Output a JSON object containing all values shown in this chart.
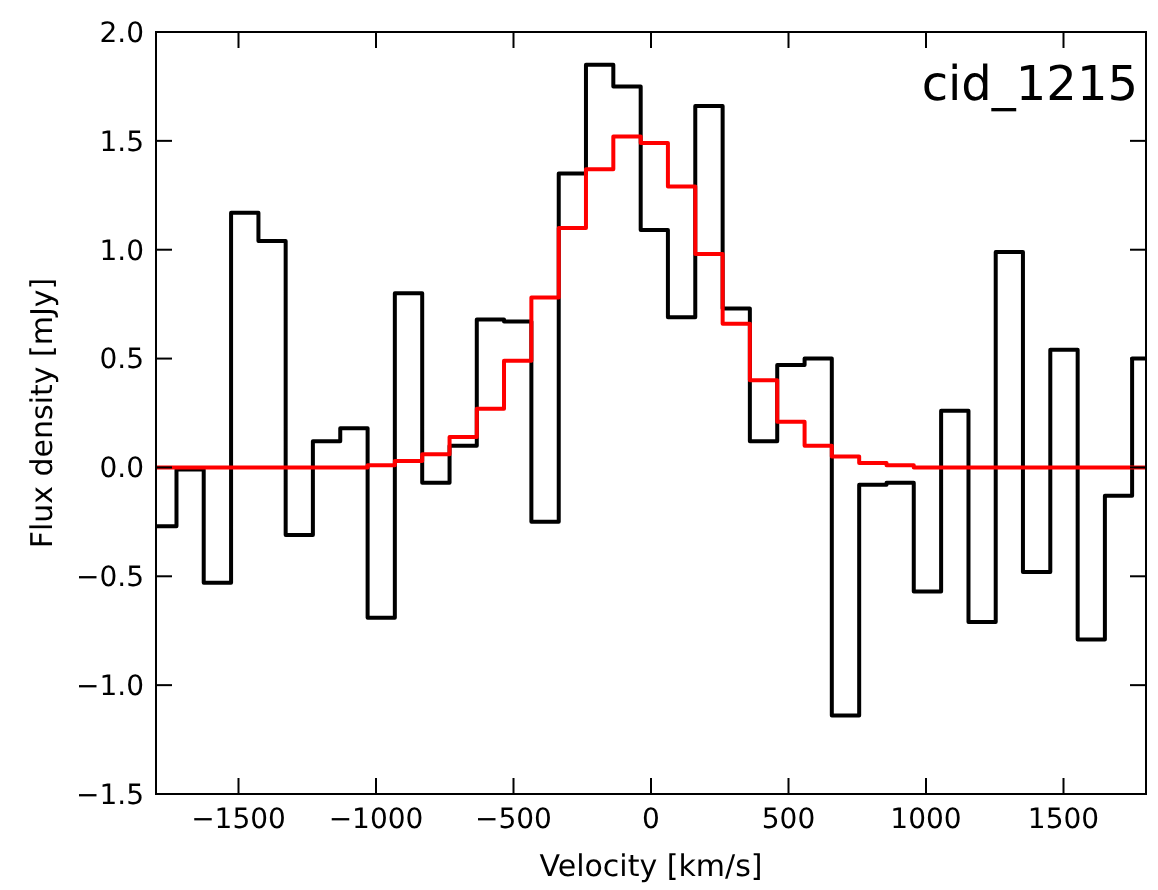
{
  "chart_data": {
    "type": "step",
    "xlabel": "Velocity [km/s]",
    "ylabel": "Flux density [mJy]",
    "annotations": [
      "cid_1215"
    ],
    "x": [
      -1775,
      -1676,
      -1577,
      -1477,
      -1378,
      -1279,
      -1180,
      -1080,
      -981,
      -882,
      -782,
      -683,
      -584,
      -485,
      -385,
      -286,
      -187,
      -87,
      12,
      111,
      211,
      310,
      409,
      509,
      608,
      707,
      807,
      906,
      1005,
      1105,
      1204,
      1303,
      1402,
      1502,
      1601,
      1700,
      1799
    ],
    "series": [
      {
        "color": "#000000",
        "values": [
          -0.27,
          -0.01,
          -0.53,
          1.17,
          1.04,
          -0.31,
          0.12,
          0.18,
          -0.69,
          0.8,
          -0.07,
          0.1,
          0.68,
          0.67,
          -0.25,
          1.35,
          1.85,
          1.75,
          1.09,
          0.69,
          1.66,
          0.73,
          0.12,
          0.47,
          0.5,
          -1.14,
          -0.08,
          -0.07,
          -0.57,
          0.26,
          -0.71,
          0.99,
          -0.48,
          0.54,
          -0.79,
          -0.13,
          0.5
        ]
      },
      {
        "color": "#ff0000",
        "values": [
          0,
          0,
          0,
          0,
          0,
          0,
          0,
          0,
          0.01,
          0.03,
          0.06,
          0.14,
          0.27,
          0.49,
          0.78,
          1.1,
          1.37,
          1.52,
          1.49,
          1.29,
          0.98,
          0.66,
          0.4,
          0.21,
          0.1,
          0.05,
          0.02,
          0.01,
          0,
          0,
          0,
          0,
          0,
          0,
          0,
          0,
          0
        ]
      }
    ],
    "xlim": [
      -1800,
      1800
    ],
    "xticks": [
      {
        "value": -1500,
        "label": "−1500"
      },
      {
        "value": -1000,
        "label": "−1000"
      },
      {
        "value": -500,
        "label": "−500"
      },
      0,
      500,
      1000,
      1500
    ],
    "ylim": [
      -1.5,
      2.0
    ],
    "yticks": [
      {
        "value": -1.5,
        "label": "−1.5"
      },
      {
        "value": -1,
        "label": "−1.0"
      },
      {
        "value": -0.5,
        "label": "−0.5"
      },
      {
        "value": 0,
        "label": "0.0"
      },
      {
        "value": 0.5,
        "label": "0.5"
      },
      {
        "value": 1,
        "label": "1.0"
      },
      {
        "value": 1.5,
        "label": "1.5"
      },
      {
        "value": 2,
        "label": "2.0"
      }
    ],
    "grid": false
  }
}
